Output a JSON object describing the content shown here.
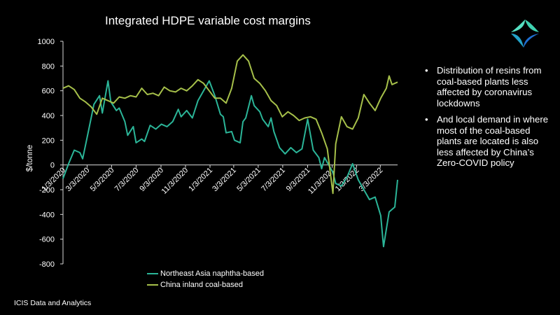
{
  "slide": {
    "bullets": [
      "Distribution of resins from coal-based plants less affected by coronavirus lockdowns",
      "And local demand in where most of the coal-based plants are located is also less affected by China’s Zero-COVID policy"
    ],
    "footer": "ICIS Data and Analytics",
    "bullet_symbol": "•",
    "logo_icon": "icis-logo-icon"
  },
  "chart_data": {
    "type": "line",
    "title": "Integrated HDPE variable cost margins",
    "ylabel": "$/tonne",
    "xlabel": "",
    "ylim": [
      -800,
      1000
    ],
    "yticks": [
      -800,
      -600,
      -400,
      -200,
      0,
      200,
      400,
      600,
      800,
      1000
    ],
    "xtick_labels": [
      "1/3/2020",
      "3/3/2020",
      "5/3/2020",
      "7/3/2020",
      "9/3/2020",
      "11/3/2020",
      "1/3/2021",
      "3/3/2021",
      "5/3/2021",
      "7/3/2021",
      "9/3/2021",
      "11/3/2021",
      "1/3/2022",
      "3/3/2022"
    ],
    "x_start": "2020-01-03",
    "x_end": "2022-04-15",
    "grid": false,
    "legend_position": "bottom",
    "series": [
      {
        "name": "Northeast Asia naphtha-based",
        "color": "#2bb598",
        "points": [
          [
            "2020-01-03",
            -110
          ],
          [
            "2020-01-17",
            10
          ],
          [
            "2020-01-31",
            120
          ],
          [
            "2020-02-14",
            100
          ],
          [
            "2020-02-21",
            50
          ],
          [
            "2020-03-06",
            270
          ],
          [
            "2020-03-20",
            490
          ],
          [
            "2020-04-03",
            560
          ],
          [
            "2020-04-10",
            420
          ],
          [
            "2020-04-24",
            680
          ],
          [
            "2020-05-01",
            510
          ],
          [
            "2020-05-15",
            440
          ],
          [
            "2020-05-22",
            460
          ],
          [
            "2020-06-05",
            350
          ],
          [
            "2020-06-12",
            240
          ],
          [
            "2020-06-26",
            310
          ],
          [
            "2020-07-03",
            180
          ],
          [
            "2020-07-17",
            210
          ],
          [
            "2020-07-24",
            190
          ],
          [
            "2020-08-07",
            320
          ],
          [
            "2020-08-21",
            290
          ],
          [
            "2020-09-04",
            330
          ],
          [
            "2020-09-18",
            310
          ],
          [
            "2020-10-02",
            350
          ],
          [
            "2020-10-16",
            450
          ],
          [
            "2020-10-23",
            390
          ],
          [
            "2020-11-06",
            440
          ],
          [
            "2020-11-20",
            380
          ],
          [
            "2020-12-04",
            520
          ],
          [
            "2020-12-18",
            600
          ],
          [
            "2021-01-01",
            680
          ],
          [
            "2021-01-15",
            560
          ],
          [
            "2021-01-29",
            410
          ],
          [
            "2021-02-05",
            390
          ],
          [
            "2021-02-12",
            260
          ],
          [
            "2021-02-26",
            270
          ],
          [
            "2021-03-05",
            200
          ],
          [
            "2021-03-19",
            180
          ],
          [
            "2021-03-26",
            350
          ],
          [
            "2021-04-02",
            380
          ],
          [
            "2021-04-16",
            560
          ],
          [
            "2021-04-23",
            480
          ],
          [
            "2021-05-07",
            430
          ],
          [
            "2021-05-14",
            370
          ],
          [
            "2021-05-28",
            310
          ],
          [
            "2021-06-04",
            380
          ],
          [
            "2021-06-11",
            270
          ],
          [
            "2021-06-25",
            140
          ],
          [
            "2021-07-09",
            90
          ],
          [
            "2021-07-23",
            140
          ],
          [
            "2021-08-06",
            100
          ],
          [
            "2021-08-20",
            130
          ],
          [
            "2021-09-03",
            370
          ],
          [
            "2021-09-17",
            120
          ],
          [
            "2021-10-01",
            60
          ],
          [
            "2021-10-08",
            -30
          ],
          [
            "2021-10-15",
            60
          ],
          [
            "2021-10-29",
            -20
          ],
          [
            "2021-11-05",
            -60
          ],
          [
            "2021-11-12",
            -150
          ],
          [
            "2021-11-26",
            -170
          ],
          [
            "2021-12-10",
            -100
          ],
          [
            "2021-12-24",
            10
          ],
          [
            "2022-01-07",
            -120
          ],
          [
            "2022-01-21",
            -200
          ],
          [
            "2022-02-04",
            -280
          ],
          [
            "2022-02-18",
            -260
          ],
          [
            "2022-03-04",
            -410
          ],
          [
            "2022-03-11",
            -660
          ],
          [
            "2022-03-25",
            -380
          ],
          [
            "2022-04-08",
            -340
          ],
          [
            "2022-04-15",
            -120
          ]
        ]
      },
      {
        "name": "China inland coal-based",
        "color": "#a6c04a",
        "points": [
          [
            "2020-01-03",
            620
          ],
          [
            "2020-01-17",
            640
          ],
          [
            "2020-01-31",
            610
          ],
          [
            "2020-02-14",
            540
          ],
          [
            "2020-02-28",
            510
          ],
          [
            "2020-03-13",
            470
          ],
          [
            "2020-03-27",
            410
          ],
          [
            "2020-04-10",
            540
          ],
          [
            "2020-04-24",
            520
          ],
          [
            "2020-05-08",
            500
          ],
          [
            "2020-05-22",
            550
          ],
          [
            "2020-06-05",
            540
          ],
          [
            "2020-06-19",
            560
          ],
          [
            "2020-07-03",
            550
          ],
          [
            "2020-07-17",
            620
          ],
          [
            "2020-07-31",
            570
          ],
          [
            "2020-08-14",
            580
          ],
          [
            "2020-08-28",
            560
          ],
          [
            "2020-09-11",
            630
          ],
          [
            "2020-09-25",
            600
          ],
          [
            "2020-10-09",
            590
          ],
          [
            "2020-10-23",
            620
          ],
          [
            "2020-11-06",
            600
          ],
          [
            "2020-11-20",
            640
          ],
          [
            "2020-12-04",
            690
          ],
          [
            "2020-12-18",
            660
          ],
          [
            "2021-01-01",
            600
          ],
          [
            "2021-01-15",
            540
          ],
          [
            "2021-01-29",
            540
          ],
          [
            "2021-02-12",
            500
          ],
          [
            "2021-02-26",
            620
          ],
          [
            "2021-03-12",
            840
          ],
          [
            "2021-03-26",
            890
          ],
          [
            "2021-04-09",
            840
          ],
          [
            "2021-04-23",
            700
          ],
          [
            "2021-05-07",
            660
          ],
          [
            "2021-05-21",
            600
          ],
          [
            "2021-06-04",
            520
          ],
          [
            "2021-06-18",
            480
          ],
          [
            "2021-07-02",
            390
          ],
          [
            "2021-07-16",
            430
          ],
          [
            "2021-07-30",
            400
          ],
          [
            "2021-08-13",
            360
          ],
          [
            "2021-08-27",
            380
          ],
          [
            "2021-09-10",
            390
          ],
          [
            "2021-09-24",
            370
          ],
          [
            "2021-10-08",
            260
          ],
          [
            "2021-10-22",
            130
          ],
          [
            "2021-11-05",
            -230
          ],
          [
            "2021-11-12",
            170
          ],
          [
            "2021-11-26",
            390
          ],
          [
            "2021-12-10",
            310
          ],
          [
            "2021-12-24",
            290
          ],
          [
            "2022-01-07",
            380
          ],
          [
            "2022-01-21",
            570
          ],
          [
            "2022-02-04",
            500
          ],
          [
            "2022-02-18",
            440
          ],
          [
            "2022-03-04",
            540
          ],
          [
            "2022-03-18",
            620
          ],
          [
            "2022-03-25",
            720
          ],
          [
            "2022-04-01",
            650
          ],
          [
            "2022-04-15",
            670
          ]
        ]
      }
    ]
  }
}
